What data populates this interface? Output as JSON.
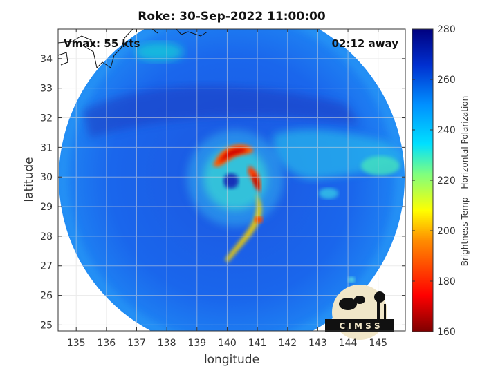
{
  "title": "Roke: 30-Sep-2022 11:00:00",
  "xlabel": "longitude",
  "ylabel": "latitude",
  "vmax_label": "Vmax: 55 kts",
  "away_label": "02:12 away",
  "colorbar_label": "Brightness Temp - Horizontal Polarization",
  "logo_text": "C I M S S",
  "x_ticks": [
    "135",
    "136",
    "137",
    "138",
    "139",
    "140",
    "141",
    "142",
    "143",
    "144",
    "145"
  ],
  "y_ticks": [
    "25",
    "26",
    "27",
    "28",
    "29",
    "30",
    "31",
    "32",
    "33",
    "34"
  ],
  "colorbar_ticks": [
    "160",
    "180",
    "200",
    "220",
    "240",
    "260",
    "280"
  ],
  "chart_data": {
    "type": "heatmap",
    "title": "Roke: 30-Sep-2022 11:00:00",
    "xlabel": "longitude",
    "ylabel": "latitude",
    "xlim": [
      134.4,
      145.9
    ],
    "ylim": [
      24.8,
      35.0
    ],
    "clim": [
      160,
      280
    ],
    "colorbar_label": "Brightness Temp - Horizontal Polarization",
    "grid": true,
    "storm_center": [
      140.0,
      29.8
    ],
    "vmax_kts": 55
  }
}
